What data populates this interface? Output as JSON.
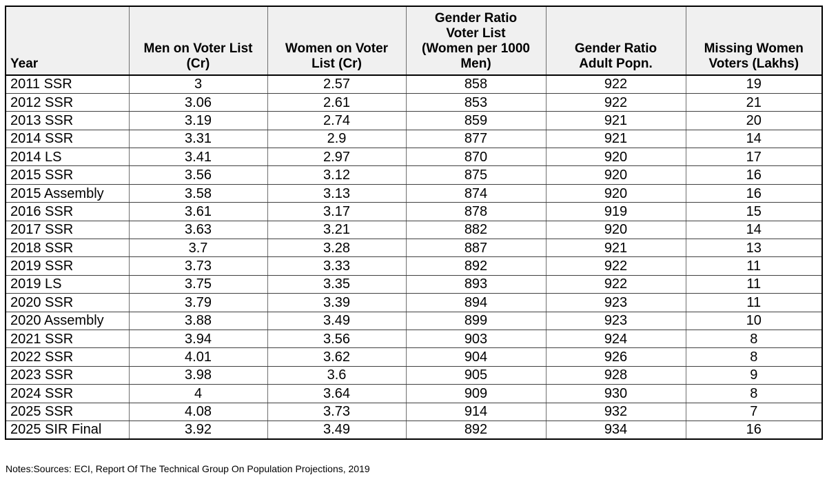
{
  "style": {
    "header_bg": "#f0f0f0",
    "outer_border": "#000000",
    "horizontal_border": "#3f3f3f",
    "vertical_border": "#6e6e6e",
    "page_bg": "#ffffff",
    "text_color": "#000000"
  },
  "notes": {
    "text": "Notes:Sources: ECI, Report Of The Technical Group On Population Projections, 2019"
  },
  "chart_data": {
    "type": "table",
    "title": "",
    "columns": [
      "Year",
      "Men on Voter List (Cr)",
      "Women on Voter List (Cr)",
      "Gender Ratio Voter List (Women per 1000 Men)",
      "Gender Ratio Adult Popn.",
      "Missing Women Voters (Lakhs)"
    ],
    "header_lines": [
      [
        "Year"
      ],
      [
        "Men on Voter List",
        "(Cr)"
      ],
      [
        "Women on Voter",
        "List (Cr)"
      ],
      [
        "Gender Ratio",
        "Voter List",
        "(Women per 1000",
        "Men)"
      ],
      [
        "Gender Ratio",
        "Adult Popn."
      ],
      [
        "Missing Women",
        "Voters (Lakhs)"
      ]
    ],
    "rows": [
      [
        "2011 SSR",
        "3",
        "2.57",
        "858",
        "922",
        "19"
      ],
      [
        "2012 SSR",
        "3.06",
        "2.61",
        "853",
        "922",
        "21"
      ],
      [
        "2013 SSR",
        "3.19",
        "2.74",
        "859",
        "921",
        "20"
      ],
      [
        "2014 SSR",
        "3.31",
        "2.9",
        "877",
        "921",
        "14"
      ],
      [
        "2014 LS",
        "3.41",
        "2.97",
        "870",
        "920",
        "17"
      ],
      [
        "2015 SSR",
        "3.56",
        "3.12",
        "875",
        "920",
        "16"
      ],
      [
        "2015 Assembly",
        "3.58",
        "3.13",
        "874",
        "920",
        "16"
      ],
      [
        "2016 SSR",
        "3.61",
        "3.17",
        "878",
        "919",
        "15"
      ],
      [
        "2017 SSR",
        "3.63",
        "3.21",
        "882",
        "920",
        "14"
      ],
      [
        "2018 SSR",
        "3.7",
        "3.28",
        "887",
        "921",
        "13"
      ],
      [
        "2019 SSR",
        "3.73",
        "3.33",
        "892",
        "922",
        "11"
      ],
      [
        "2019 LS",
        "3.75",
        "3.35",
        "893",
        "922",
        "11"
      ],
      [
        "2020 SSR",
        "3.79",
        "3.39",
        "894",
        "923",
        "11"
      ],
      [
        "2020 Assembly",
        "3.88",
        "3.49",
        "899",
        "923",
        "10"
      ],
      [
        "2021 SSR",
        "3.94",
        "3.56",
        "903",
        "924",
        "8"
      ],
      [
        "2022 SSR",
        "4.01",
        "3.62",
        "904",
        "926",
        "8"
      ],
      [
        "2023 SSR",
        "3.98",
        "3.6",
        "905",
        "928",
        "9"
      ],
      [
        "2024 SSR",
        "4",
        "3.64",
        "909",
        "930",
        "8"
      ],
      [
        "2025 SSR",
        "4.08",
        "3.73",
        "914",
        "932",
        "7"
      ],
      [
        "2025 SIR Final",
        "3.92",
        "3.49",
        "892",
        "934",
        "16"
      ]
    ]
  }
}
